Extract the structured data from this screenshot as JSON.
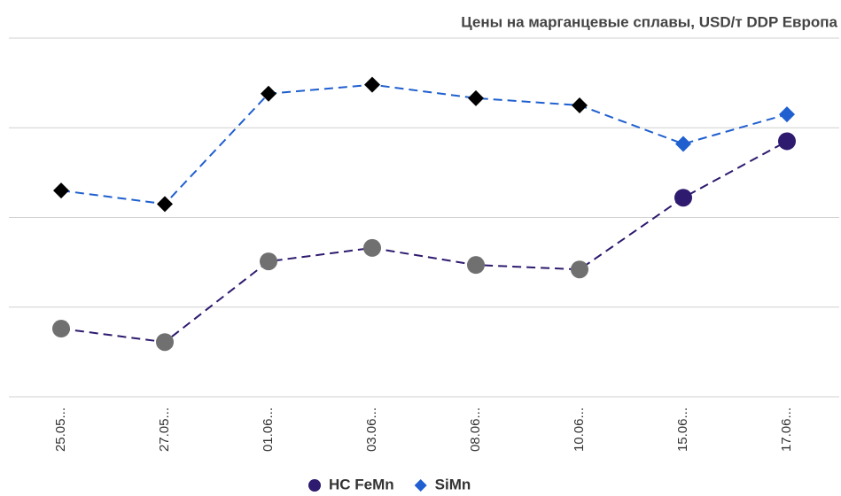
{
  "chart_data": {
    "type": "line",
    "title": "Цены на марганцевые сплавы, USD/т DDP Европа",
    "categories": [
      "25.05...",
      "27.05...",
      "01.06...",
      "03.06...",
      "08.06...",
      "10.06...",
      "15.06...",
      "17.06..."
    ],
    "series": [
      {
        "name": "HC FeMn",
        "color": "#2e1a6e",
        "marker": "circle",
        "point_colors": [
          "#707070",
          "#707070",
          "#707070",
          "#707070",
          "#707070",
          "#707070",
          "#2e1a6e",
          "#2e1a6e"
        ],
        "values": [
          0.76,
          0.61,
          1.51,
          1.66,
          1.47,
          1.42,
          2.22,
          2.85
        ]
      },
      {
        "name": "SiMn",
        "color": "#1f5fcf",
        "marker": "diamond",
        "point_colors": [
          "#000000",
          "#000000",
          "#000000",
          "#000000",
          "#000000",
          "#000000",
          "#1f5fcf",
          "#1f5fcf"
        ],
        "values": [
          2.3,
          2.15,
          3.38,
          3.48,
          3.33,
          3.25,
          2.82,
          3.15
        ]
      }
    ],
    "ylim": [
      0,
      4
    ],
    "yticks": [
      0,
      1,
      2,
      3,
      4
    ],
    "grid": true,
    "legend": "bottom"
  }
}
